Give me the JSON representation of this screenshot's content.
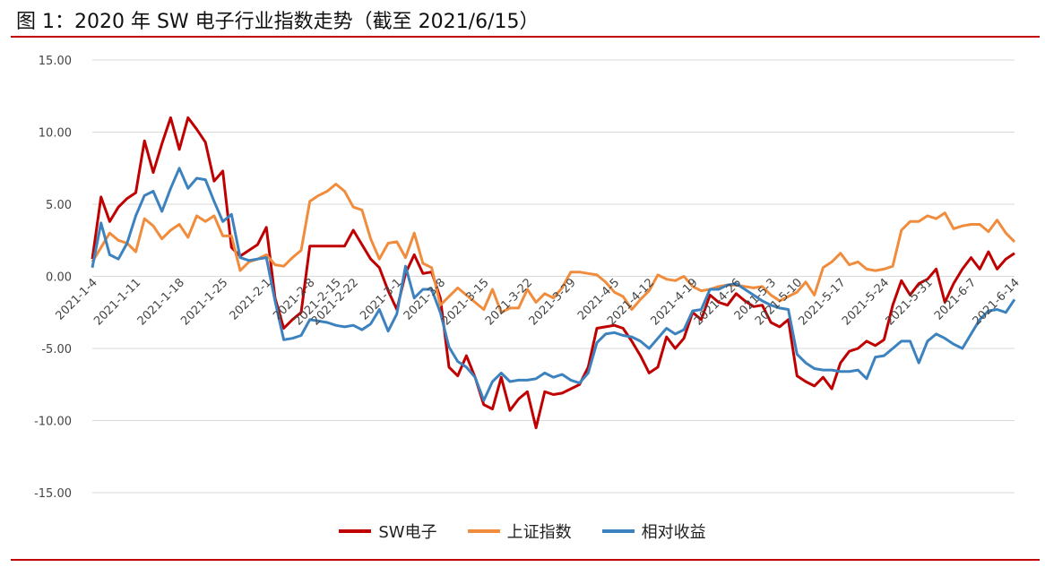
{
  "figure": {
    "title": "图 1：2020 年 SW 电子行业指数走势（截至 2021/6/15）"
  },
  "colors": {
    "rule": "#c00000",
    "grid": "#d9d9d9"
  },
  "chart_data": {
    "type": "line",
    "ylim": [
      -15,
      15
    ],
    "yticks": [
      15,
      10,
      5,
      0,
      -5,
      -10,
      -15
    ],
    "ytick_labels": [
      "15.00",
      "10.00",
      "5.00",
      "0.00",
      "-5.00",
      "-10.00",
      "-15.00"
    ],
    "grid": "horizontal",
    "legend_position": "bottom",
    "x_tick_labels": [
      "2021-1-4",
      "2021-1-11",
      "2021-1-18",
      "2021-1-25",
      "2021-2-1",
      "2021-2-8",
      "2021-2-15",
      "2021-2-22",
      "2021-3-1",
      "2021-3-8",
      "2021-3-15",
      "2021-3-22",
      "2021-3-29",
      "2021-4-5",
      "2021-4-12",
      "2021-4-19",
      "2021-4-26",
      "2021-5-3",
      "2021-5-10",
      "2021-5-17",
      "2021-5-24",
      "2021-5-31",
      "2021-6-7",
      "2021-6-14"
    ],
    "x": [
      "2021-1-4",
      "2021-1-5",
      "2021-1-6",
      "2021-1-7",
      "2021-1-8",
      "2021-1-11",
      "2021-1-12",
      "2021-1-13",
      "2021-1-14",
      "2021-1-15",
      "2021-1-18",
      "2021-1-19",
      "2021-1-20",
      "2021-1-21",
      "2021-1-22",
      "2021-1-25",
      "2021-1-26",
      "2021-1-27",
      "2021-1-28",
      "2021-1-29",
      "2021-2-1",
      "2021-2-2",
      "2021-2-3",
      "2021-2-4",
      "2021-2-5",
      "2021-2-8",
      "2021-2-9",
      "2021-2-10",
      "2021-2-18",
      "2021-2-19",
      "2021-2-22",
      "2021-2-23",
      "2021-2-24",
      "2021-2-25",
      "2021-2-26",
      "2021-3-1",
      "2021-3-2",
      "2021-3-3",
      "2021-3-4",
      "2021-3-5",
      "2021-3-8",
      "2021-3-9",
      "2021-3-10",
      "2021-3-11",
      "2021-3-12",
      "2021-3-15",
      "2021-3-16",
      "2021-3-17",
      "2021-3-18",
      "2021-3-19",
      "2021-3-22",
      "2021-3-23",
      "2021-3-24",
      "2021-3-25",
      "2021-3-26",
      "2021-3-29",
      "2021-3-30",
      "2021-3-31",
      "2021-4-1",
      "2021-4-2",
      "2021-4-6",
      "2021-4-7",
      "2021-4-8",
      "2021-4-9",
      "2021-4-12",
      "2021-4-13",
      "2021-4-14",
      "2021-4-15",
      "2021-4-16",
      "2021-4-19",
      "2021-4-20",
      "2021-4-21",
      "2021-4-22",
      "2021-4-23",
      "2021-4-26",
      "2021-4-27",
      "2021-4-28",
      "2021-4-29",
      "2021-4-30",
      "2021-5-6",
      "2021-5-7",
      "2021-5-10",
      "2021-5-11",
      "2021-5-12",
      "2021-5-13",
      "2021-5-14",
      "2021-5-17",
      "2021-5-18",
      "2021-5-19",
      "2021-5-20",
      "2021-5-21",
      "2021-5-24",
      "2021-5-25",
      "2021-5-26",
      "2021-5-27",
      "2021-5-28",
      "2021-5-31",
      "2021-6-1",
      "2021-6-2",
      "2021-6-3",
      "2021-6-4",
      "2021-6-7",
      "2021-6-8",
      "2021-6-9",
      "2021-6-10",
      "2021-6-11",
      "2021-6-15"
    ],
    "series": [
      {
        "name": "SW电子",
        "color": "#c00000",
        "values": [
          1.2,
          5.5,
          3.8,
          4.8,
          5.4,
          5.8,
          9.4,
          7.2,
          9.2,
          11.0,
          8.8,
          11.0,
          10.2,
          9.3,
          6.6,
          7.3,
          2.0,
          1.4,
          1.8,
          2.2,
          3.4,
          -1.5,
          -3.6,
          -3.0,
          -2.5,
          2.1,
          2.1,
          2.1,
          2.1,
          2.1,
          3.2,
          2.2,
          1.2,
          0.6,
          -1.0,
          -2.3,
          0.2,
          1.5,
          0.2,
          0.3,
          -1.5,
          -6.3,
          -6.9,
          -5.5,
          -7.0,
          -8.9,
          -9.2,
          -7.0,
          -9.3,
          -8.5,
          -8.0,
          -10.5,
          -8.0,
          -8.2,
          -8.1,
          -7.8,
          -7.5,
          -6.3,
          -3.6,
          -3.5,
          -3.4,
          -3.6,
          -4.5,
          -5.5,
          -6.7,
          -6.3,
          -4.2,
          -5.0,
          -4.3,
          -2.5,
          -3.0,
          -1.3,
          -1.8,
          -2.0,
          -1.2,
          -1.7,
          -2.1,
          -2.0,
          -3.2,
          -3.5,
          -3.0,
          -6.9,
          -7.3,
          -7.6,
          -7.0,
          -7.8,
          -6.0,
          -5.2,
          -5.0,
          -4.5,
          -4.8,
          -4.4,
          -2.0,
          -0.3,
          -1.3,
          -0.5,
          -0.2,
          0.5,
          -1.8,
          -0.5,
          0.5,
          1.3,
          0.5,
          1.7,
          0.5,
          1.2,
          1.6
        ]
      },
      {
        "name": "上证指数",
        "color": "#f08c3c",
        "values": [
          1.0,
          2.0,
          3.0,
          2.5,
          2.3,
          1.7,
          4.0,
          3.5,
          2.6,
          3.2,
          3.6,
          2.7,
          4.2,
          3.8,
          4.2,
          2.8,
          2.8,
          0.4,
          1.0,
          1.2,
          1.5,
          0.8,
          0.7,
          1.3,
          1.8,
          5.2,
          5.6,
          5.9,
          6.4,
          5.9,
          4.8,
          4.6,
          2.6,
          1.2,
          2.3,
          2.4,
          1.3,
          3.0,
          0.9,
          0.6,
          -2.0,
          -1.4,
          -0.8,
          -1.3,
          -1.8,
          -2.3,
          -0.9,
          -2.5,
          -2.2,
          -2.2,
          -0.9,
          -1.8,
          -1.2,
          -1.5,
          -0.8,
          0.3,
          0.3,
          0.2,
          0.1,
          -0.4,
          -1.1,
          -1.4,
          -2.3,
          -1.6,
          -1.0,
          0.1,
          -0.2,
          -0.3,
          0.0,
          -0.7,
          -1.0,
          -0.9,
          -0.7,
          -0.6,
          -0.6,
          -0.7,
          -0.8,
          -0.7,
          -1.3,
          -1.7,
          -1.4,
          -1.1,
          -0.4,
          -1.3,
          0.6,
          1.0,
          1.6,
          0.8,
          1.0,
          0.5,
          0.4,
          0.5,
          0.7,
          3.2,
          3.8,
          3.8,
          4.2,
          4.0,
          4.4,
          3.3,
          3.5,
          3.6,
          3.6,
          3.1,
          3.9,
          3.0,
          2.4
        ]
      },
      {
        "name": "相对收益",
        "color": "#3c82be",
        "values": [
          0.6,
          3.7,
          1.5,
          1.2,
          2.3,
          4.2,
          5.6,
          5.9,
          4.5,
          6.1,
          7.5,
          6.1,
          6.8,
          6.7,
          5.2,
          3.8,
          4.3,
          1.3,
          1.1,
          1.2,
          1.3,
          -1.7,
          -4.4,
          -4.3,
          -4.1,
          -3.0,
          -3.1,
          -3.2,
          -3.4,
          -3.5,
          -3.4,
          -3.7,
          -3.3,
          -2.3,
          -3.8,
          -2.6,
          0.7,
          -1.5,
          -0.9,
          -0.9,
          -2.5,
          -4.9,
          -5.9,
          -6.3,
          -7.0,
          -8.6,
          -7.3,
          -6.7,
          -7.3,
          -7.2,
          -7.2,
          -7.1,
          -6.7,
          -7.0,
          -6.8,
          -7.2,
          -7.4,
          -6.7,
          -4.6,
          -4.0,
          -3.9,
          -4.1,
          -4.2,
          -4.5,
          -5.0,
          -4.3,
          -3.6,
          -4.0,
          -3.7,
          -2.4,
          -2.3,
          -0.9,
          -0.9,
          -0.6,
          -0.5,
          -0.9,
          -1.3,
          -1.7,
          -2.0,
          -2.2,
          -2.3,
          -5.4,
          -6.0,
          -6.4,
          -6.5,
          -6.5,
          -6.6,
          -6.6,
          -6.5,
          -7.1,
          -5.6,
          -5.5,
          -5.0,
          -4.5,
          -4.5,
          -6.0,
          -4.5,
          -4.0,
          -4.3,
          -4.7,
          -5.0,
          -4.0,
          -3.0,
          -2.4,
          -2.3,
          -2.5,
          -1.6
        ]
      }
    ]
  }
}
